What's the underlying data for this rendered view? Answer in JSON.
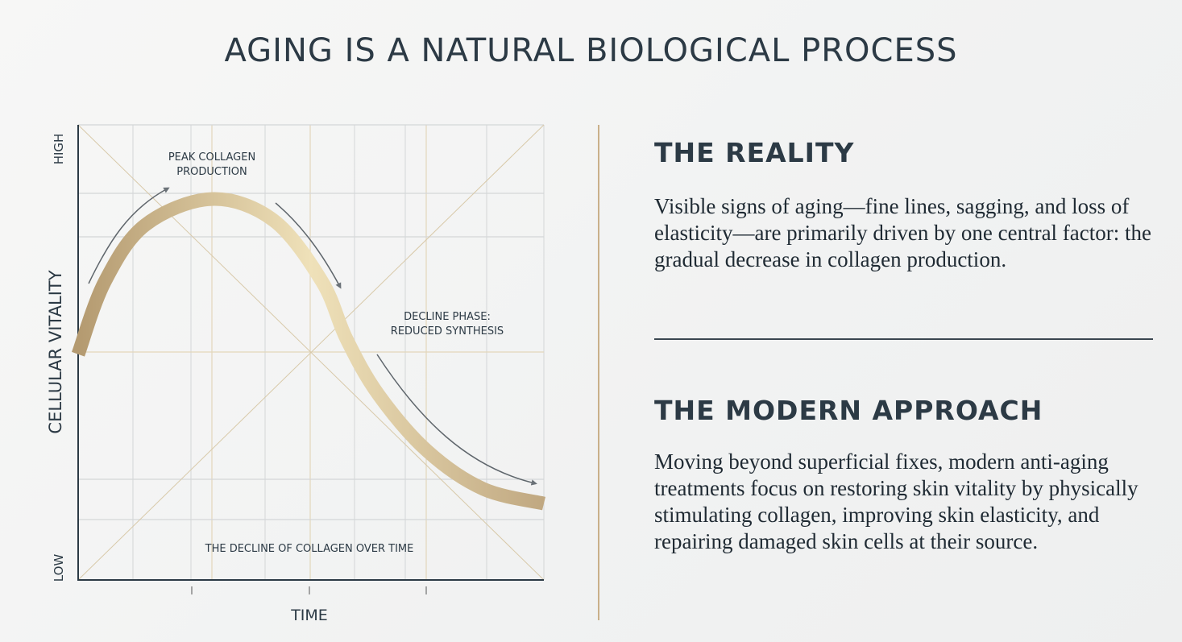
{
  "title": "AGING IS A NATURAL BIOLOGICAL PROCESS",
  "colors": {
    "heading": "#2c3a45",
    "accent_gold": "#c9b08a",
    "curve_light": "#efe0b8",
    "curve_dark": "#b79f76",
    "arrow": "#6b7278"
  },
  "chart_data": {
    "type": "line",
    "title": "",
    "xlabel": "TIME",
    "ylabel": "CELLULAR VITALITY",
    "y_tick_labels": {
      "low": "LOW",
      "high": "HIGH"
    },
    "xlim": [
      0,
      10
    ],
    "ylim": [
      0,
      10
    ],
    "grid": true,
    "series": [
      {
        "x": [
          0,
          0.57,
          1.44,
          2.87,
          4.2,
          5.24,
          5.76,
          6.45,
          7.5,
          8.7,
          10
        ],
        "y": [
          4.96,
          6.55,
          7.8,
          8.37,
          7.9,
          6.55,
          5.3,
          4.07,
          2.83,
          2.0,
          1.68
        ]
      }
    ],
    "annotations": {
      "peak": [
        "PEAK COLLAGEN",
        "PRODUCTION"
      ],
      "decline": [
        "DECLINE PHASE:",
        "REDUCED SYNTHESIS"
      ],
      "caption": "THE DECLINE OF COLLAGEN OVER TIME"
    }
  },
  "reality": {
    "heading": "THE REALITY",
    "text": "Visible signs of aging—fine lines, sagging, and loss of elasticity—are primarily driven by one central factor: the gradual decrease in collagen production."
  },
  "modern": {
    "heading": "THE MODERN APPROACH",
    "text": "Moving beyond superficial fixes, modern anti-aging treatments focus on restoring skin vitality by physically stimulating collagen, improving skin elasticity, and repairing damaged skin cells at their source."
  }
}
